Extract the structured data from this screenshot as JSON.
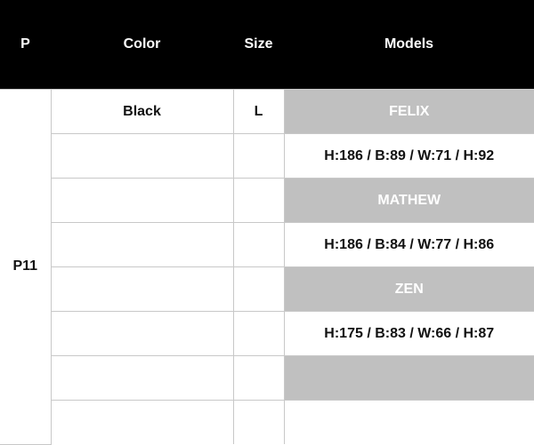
{
  "headers": [
    "P",
    "Color",
    "Size",
    "Models"
  ],
  "product": "P11",
  "color": "Black",
  "size": "L",
  "models": [
    {
      "name": "FELIX",
      "measurements": "H:186 / B:89 / W:71 / H:92"
    },
    {
      "name": "MATHEW",
      "measurements": "H:186 / B:84 / W:77 / H:86"
    },
    {
      "name": "ZEN",
      "measurements": "H:175 / B:83 / W:66 / H:87"
    },
    {
      "name": "",
      "measurements": ""
    }
  ],
  "colors": {
    "header_bg": "#000000",
    "model_name_bg": "#c0c0c0"
  }
}
